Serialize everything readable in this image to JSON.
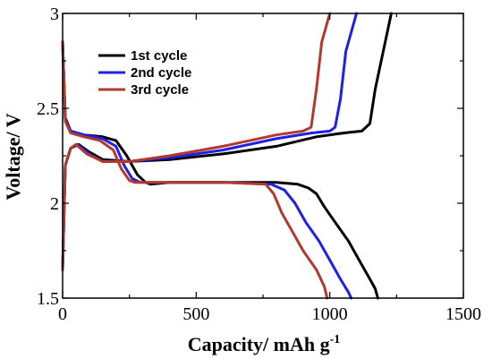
{
  "chart_data": {
    "type": "line",
    "title": "",
    "xlabel": "Capacity/ mAh g",
    "xlabel_sup": "-1",
    "ylabel": "Voltage/ V",
    "xlim": [
      0,
      1500
    ],
    "ylim": [
      1.5,
      3.0
    ],
    "xticks": [
      0,
      500,
      1000,
      1500
    ],
    "xtick_labels": [
      "0",
      "500",
      "1000",
      "1500"
    ],
    "yticks": [
      1.5,
      2.0,
      2.5,
      3.0
    ],
    "ytick_labels": [
      "1.5",
      "2",
      "2.5",
      "3"
    ],
    "grid": false,
    "legend_position": "top-left",
    "series": [
      {
        "name": "1st  cycle",
        "color": "#000000",
        "discharge": [
          [
            0,
            2.85
          ],
          [
            10,
            2.45
          ],
          [
            30,
            2.38
          ],
          [
            80,
            2.36
          ],
          [
            150,
            2.35
          ],
          [
            200,
            2.33
          ],
          [
            240,
            2.25
          ],
          [
            280,
            2.15
          ],
          [
            310,
            2.11
          ],
          [
            330,
            2.1
          ],
          [
            400,
            2.11
          ],
          [
            600,
            2.11
          ],
          [
            800,
            2.11
          ],
          [
            880,
            2.1
          ],
          [
            920,
            2.08
          ],
          [
            950,
            2.05
          ],
          [
            980,
            1.98
          ],
          [
            1020,
            1.9
          ],
          [
            1070,
            1.8
          ],
          [
            1110,
            1.7
          ],
          [
            1150,
            1.6
          ],
          [
            1170,
            1.55
          ],
          [
            1180,
            1.5
          ]
        ],
        "charge": [
          [
            0,
            1.65
          ],
          [
            10,
            2.2
          ],
          [
            30,
            2.29
          ],
          [
            60,
            2.31
          ],
          [
            100,
            2.27
          ],
          [
            150,
            2.23
          ],
          [
            250,
            2.22
          ],
          [
            400,
            2.23
          ],
          [
            600,
            2.26
          ],
          [
            800,
            2.3
          ],
          [
            950,
            2.35
          ],
          [
            1050,
            2.37
          ],
          [
            1120,
            2.38
          ],
          [
            1150,
            2.42
          ],
          [
            1170,
            2.6
          ],
          [
            1200,
            2.8
          ],
          [
            1230,
            3.0
          ]
        ]
      },
      {
        "name": "2nd cycle",
        "color": "#1f1fe6",
        "discharge": [
          [
            0,
            2.85
          ],
          [
            10,
            2.44
          ],
          [
            30,
            2.38
          ],
          [
            80,
            2.36
          ],
          [
            150,
            2.34
          ],
          [
            200,
            2.3
          ],
          [
            230,
            2.2
          ],
          [
            260,
            2.13
          ],
          [
            290,
            2.11
          ],
          [
            400,
            2.11
          ],
          [
            600,
            2.11
          ],
          [
            780,
            2.1
          ],
          [
            830,
            2.07
          ],
          [
            870,
            2.0
          ],
          [
            910,
            1.9
          ],
          [
            960,
            1.8
          ],
          [
            1000,
            1.7
          ],
          [
            1040,
            1.6
          ],
          [
            1070,
            1.53
          ],
          [
            1080,
            1.5
          ]
        ],
        "charge": [
          [
            0,
            1.65
          ],
          [
            10,
            2.2
          ],
          [
            30,
            2.29
          ],
          [
            55,
            2.31
          ],
          [
            100,
            2.26
          ],
          [
            150,
            2.22
          ],
          [
            250,
            2.22
          ],
          [
            400,
            2.24
          ],
          [
            600,
            2.28
          ],
          [
            800,
            2.34
          ],
          [
            930,
            2.37
          ],
          [
            1000,
            2.38
          ],
          [
            1020,
            2.4
          ],
          [
            1040,
            2.55
          ],
          [
            1060,
            2.8
          ],
          [
            1100,
            3.0
          ]
        ]
      },
      {
        "name": "3rd  cycle",
        "color": "#b03a2e",
        "discharge": [
          [
            0,
            2.85
          ],
          [
            10,
            2.43
          ],
          [
            30,
            2.37
          ],
          [
            80,
            2.35
          ],
          [
            140,
            2.33
          ],
          [
            190,
            2.28
          ],
          [
            220,
            2.18
          ],
          [
            250,
            2.12
          ],
          [
            270,
            2.11
          ],
          [
            400,
            2.11
          ],
          [
            600,
            2.11
          ],
          [
            760,
            2.1
          ],
          [
            790,
            2.05
          ],
          [
            820,
            1.95
          ],
          [
            860,
            1.85
          ],
          [
            900,
            1.75
          ],
          [
            950,
            1.65
          ],
          [
            980,
            1.56
          ],
          [
            990,
            1.5
          ]
        ],
        "charge": [
          [
            0,
            1.65
          ],
          [
            10,
            2.2
          ],
          [
            30,
            2.29
          ],
          [
            50,
            2.31
          ],
          [
            90,
            2.26
          ],
          [
            150,
            2.22
          ],
          [
            250,
            2.22
          ],
          [
            400,
            2.25
          ],
          [
            600,
            2.3
          ],
          [
            800,
            2.36
          ],
          [
            900,
            2.38
          ],
          [
            930,
            2.4
          ],
          [
            950,
            2.6
          ],
          [
            970,
            2.85
          ],
          [
            1000,
            3.0
          ]
        ]
      }
    ]
  }
}
